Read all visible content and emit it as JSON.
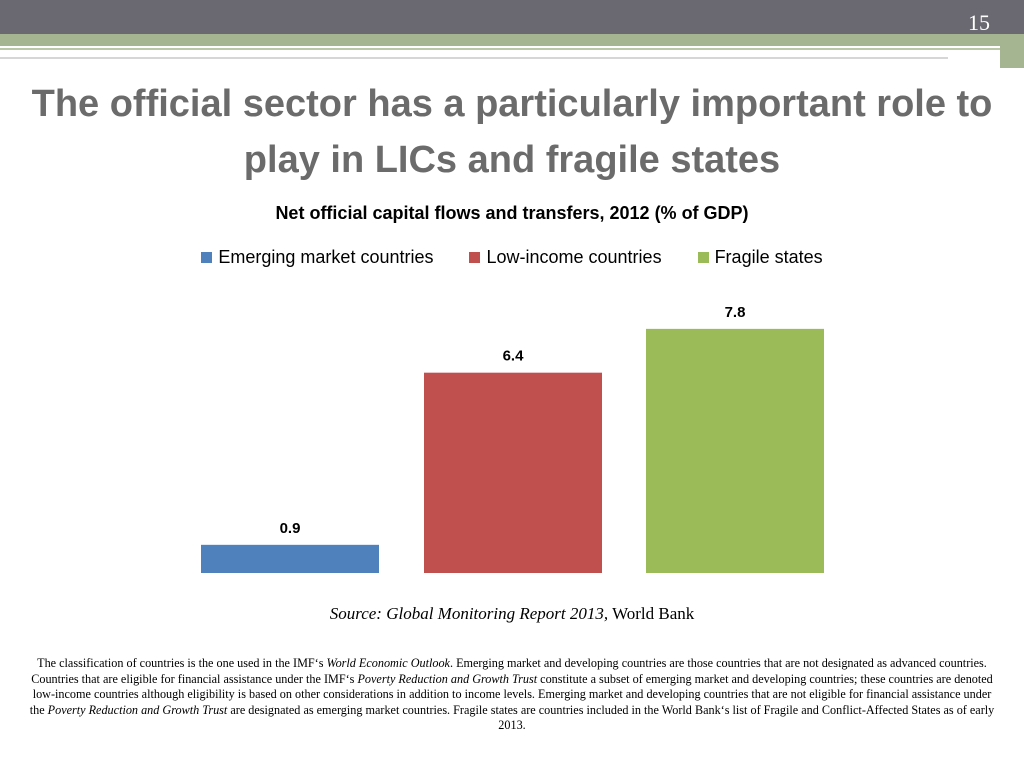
{
  "slide": {
    "number": "15",
    "title": "The official sector has a particularly important role to play in LICs and fragile states"
  },
  "chart_data": {
    "type": "bar",
    "title": "Net official capital flows and transfers, 2012 (% of GDP)",
    "categories": [
      "Emerging market countries",
      "Low-income countries",
      "Fragile states"
    ],
    "values": [
      0.9,
      6.4,
      7.8
    ],
    "value_labels": [
      "0.9",
      "6.4",
      "7.8"
    ],
    "colors": [
      "#4f81bd",
      "#c0504d",
      "#9bbb59"
    ],
    "legend": [
      {
        "name": "Emerging market countries",
        "color": "#4f81bd"
      },
      {
        "name": "Low-income countries",
        "color": "#c0504d"
      },
      {
        "name": "Fragile states",
        "color": "#9bbb59"
      }
    ],
    "legend_position": "top",
    "grid": false,
    "ylim": [
      0,
      8
    ],
    "xlabel": "",
    "ylabel": ""
  },
  "source": {
    "italic": "Source: Global Monitoring Report 2013,",
    "plain": " World Bank"
  },
  "footnote": {
    "p1": "The classification of countries is the one used in the IMF‘s ",
    "p1_em": "World Economic Outlook",
    "p2": ". Emerging market and developing countries are those countries that are not designated as advanced countries. Countries that are eligible for financial assistance under the IMF‘s ",
    "p2_em": "Poverty Reduction and Growth Trust",
    "p3": " constitute a subset of emerging market and developing countries; these countries are denoted low-income countries although eligibility is based on other considerations in addition to income levels. Emerging market and developing countries that are not eligible for financial assistance under the ",
    "p3_em": "Poverty Reduction and Growth Trust",
    "p4": " are designated as emerging market countries. Fragile states are countries included in the World Bank‘s list of Fragile and Conflict-Affected States as of early 2013."
  }
}
